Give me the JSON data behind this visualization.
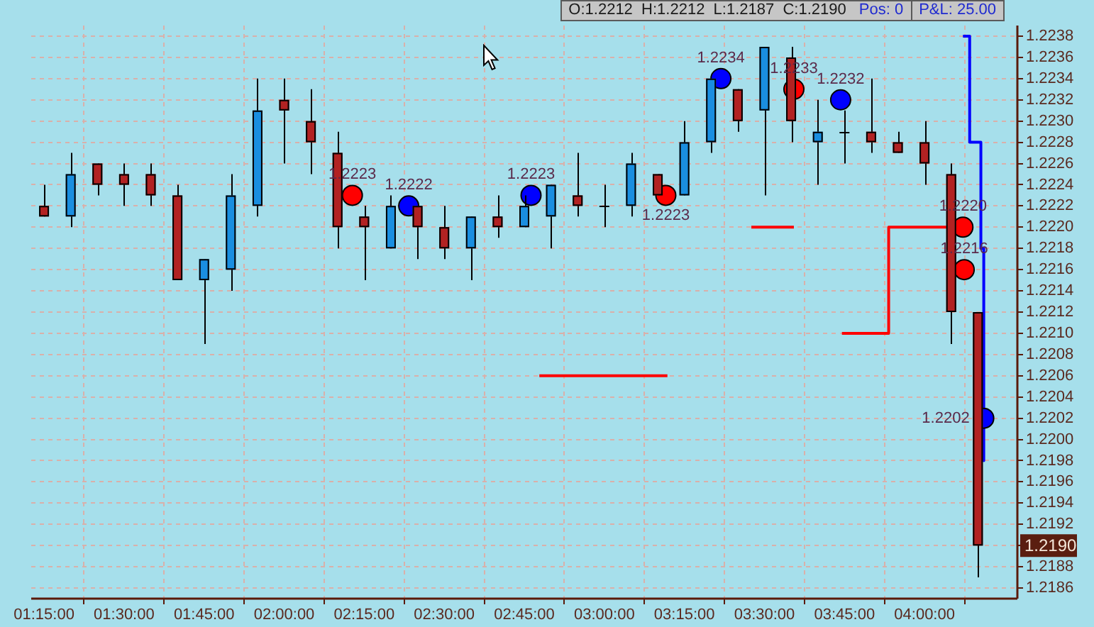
{
  "chart_data": {
    "type": "candlestick",
    "x": [
      1.25,
      1.3333,
      1.4167,
      1.5,
      1.5833,
      1.6667,
      1.75,
      1.8333,
      1.9167,
      2,
      2.0833,
      2.1667,
      2.25,
      2.3333,
      2.4167,
      2.5,
      2.5833,
      2.6667,
      2.75,
      2.8333,
      2.9167,
      3,
      3.0833,
      3.1667,
      3.25,
      3.3333,
      3.4167,
      3.5,
      3.5833,
      3.6667,
      3.75,
      3.8333,
      3.9167,
      4,
      4.0833,
      4.1667
    ],
    "ohlc": [
      [
        1.2222,
        1.2224,
        1.2221,
        1.2221
      ],
      [
        1.2221,
        1.2227,
        1.222,
        1.2225
      ],
      [
        1.2226,
        1.2226,
        1.2223,
        1.2224
      ],
      [
        1.2225,
        1.2226,
        1.2222,
        1.2224
      ],
      [
        1.2225,
        1.2226,
        1.2222,
        1.2223
      ],
      [
        1.2223,
        1.2224,
        1.2215,
        1.2215
      ],
      [
        1.2215,
        1.2217,
        1.2209,
        1.2217
      ],
      [
        1.2216,
        1.2225,
        1.2214,
        1.2223
      ],
      [
        1.2222,
        1.2234,
        1.2221,
        1.2231
      ],
      [
        1.2232,
        1.2234,
        1.2226,
        1.2231
      ],
      [
        1.223,
        1.2233,
        1.2225,
        1.2228
      ],
      [
        1.2227,
        1.2229,
        1.2218,
        1.222
      ],
      [
        1.2221,
        1.2222,
        1.2215,
        1.222
      ],
      [
        1.2218,
        1.2223,
        1.2218,
        1.2222
      ],
      [
        1.2222,
        1.2222,
        1.2217,
        1.222
      ],
      [
        1.222,
        1.2222,
        1.2217,
        1.2218
      ],
      [
        1.2218,
        1.2221,
        1.2215,
        1.2221
      ],
      [
        1.2221,
        1.2223,
        1.2219,
        1.222
      ],
      [
        1.222,
        1.2223,
        1.222,
        1.2222
      ],
      [
        1.2221,
        1.2224,
        1.2218,
        1.2224
      ],
      [
        1.2223,
        1.2227,
        1.2221,
        1.2222
      ],
      [
        1.2222,
        1.2224,
        1.222,
        1.2222
      ],
      [
        1.2222,
        1.2227,
        1.2221,
        1.2226
      ],
      [
        1.2225,
        1.2225,
        1.2223,
        1.2223
      ],
      [
        1.2223,
        1.223,
        1.2223,
        1.2228
      ],
      [
        1.2228,
        1.2234,
        1.2227,
        1.2234
      ],
      [
        1.2233,
        1.2233,
        1.2229,
        1.223
      ],
      [
        1.2231,
        1.2237,
        1.2223,
        1.2237
      ],
      [
        1.2236,
        1.2237,
        1.2228,
        1.223
      ],
      [
        1.2228,
        1.2232,
        1.2224,
        1.2229
      ],
      [
        1.2229,
        1.2231,
        1.2226,
        1.2229
      ],
      [
        1.2229,
        1.2234,
        1.2227,
        1.2228
      ],
      [
        1.2228,
        1.2229,
        1.2227,
        1.2227
      ],
      [
        1.2228,
        1.223,
        1.2224,
        1.2226
      ],
      [
        1.2225,
        1.2226,
        1.2209,
        1.2212
      ],
      [
        1.2212,
        1.2212,
        1.2187,
        1.219
      ]
    ],
    "colors": [
      "#b22222",
      "#1a8ee0",
      "#b22222",
      "#b22222",
      "#b22222",
      "#b22222",
      "#1a8ee0",
      "#1a8ee0",
      "#1a8ee0",
      "#b22222",
      "#b22222",
      "#b22222",
      "#b22222",
      "#1a8ee0",
      "#b22222",
      "#b22222",
      "#1a8ee0",
      "#b22222",
      "#1a8ee0",
      "#1a8ee0",
      "#b22222",
      "#000000",
      "#1a8ee0",
      "#b22222",
      "#1a8ee0",
      "#1a8ee0",
      "#b22222",
      "#1a8ee0",
      "#b22222",
      "#1a8ee0",
      "#000000",
      "#b22222",
      "#b22222",
      "#b22222",
      "#b22222",
      "#b22222"
    ],
    "series": [
      {
        "type": "scatter",
        "color": "#ff0000",
        "marker": "circle",
        "x": [
          2.213,
          3.192,
          3.592,
          4.12,
          4.124
        ],
        "values": [
          1.2223,
          1.2223,
          1.2233,
          1.222,
          1.2216
        ],
        "value_labels": [
          "1.2223",
          "1.2223",
          "1.2233",
          "1.2220",
          "1.2216"
        ]
      },
      {
        "type": "scatter",
        "color": "#0000ff",
        "marker": "circle",
        "x": [
          2.389,
          2.771,
          3.364,
          3.738,
          4.185
        ],
        "values": [
          1.2222,
          1.2223,
          1.2234,
          1.2232,
          1.2202
        ],
        "value_labels": [
          "1.2222",
          "1.2223",
          "1.2234",
          "1.2232",
          "1.2202"
        ]
      },
      {
        "type": "line",
        "color": "#ff0000",
        "marker": "none",
        "x": [
          2.797,
          3.197
        ],
        "values": [
          1.2206,
          1.2206
        ]
      },
      {
        "type": "line",
        "color": "#ff0000",
        "marker": "none",
        "x": [
          3.459,
          3.592
        ],
        "values": [
          1.222,
          1.222
        ]
      },
      {
        "type": "line",
        "color": "#ff0000",
        "marker": "none",
        "x": [
          3.742,
          3.888,
          3.888,
          4.103
        ],
        "values": [
          1.221,
          1.221,
          1.222,
          1.222
        ]
      },
      {
        "type": "line",
        "color": "#0000ff",
        "marker": "none",
        "x": [
          4.12,
          4.141,
          4.141,
          4.176,
          4.176,
          4.185,
          4.185
        ],
        "values": [
          1.2238,
          1.2238,
          1.2228,
          1.2228,
          1.2218,
          1.2218,
          1.2198
        ]
      }
    ],
    "xlim": [
      1.21,
      4.29
    ],
    "xticks": [
      {
        "value": 1.25,
        "label": "01:15:00"
      },
      {
        "value": 1.5,
        "label": "01:30:00"
      },
      {
        "value": 1.75,
        "label": "01:45:00"
      },
      {
        "value": 2,
        "label": "02:00:00"
      },
      {
        "value": 2.25,
        "label": "02:15:00"
      },
      {
        "value": 2.5,
        "label": "02:30:00"
      },
      {
        "value": 2.75,
        "label": "02:45:00"
      },
      {
        "value": 3,
        "label": "03:00:00"
      },
      {
        "value": 3.25,
        "label": "03:15:00"
      },
      {
        "value": 3.5,
        "label": "03:30:00"
      },
      {
        "value": 3.75,
        "label": "03:45:00"
      },
      {
        "value": 4,
        "label": "04:00:00"
      }
    ],
    "ylim": [
      1.2185,
      1.2239
    ],
    "yticks": [
      1.2186,
      1.2188,
      {
        "value": 1.219,
        "label": null
      },
      1.2192,
      1.2194,
      1.2196,
      1.2198,
      {
        "value": 1.22,
        "label": "1.2200"
      },
      1.2202,
      1.2204,
      1.2206,
      1.2208,
      {
        "value": 1.221,
        "label": "1.2210"
      },
      1.2212,
      1.2214,
      1.2216,
      1.2218,
      {
        "value": 1.222,
        "label": "1.2220"
      },
      1.2222,
      1.2224,
      1.2226,
      1.2228,
      {
        "value": 1.223,
        "label": "1.2230"
      },
      1.2232,
      1.2234,
      1.2236,
      1.2238
    ],
    "grid": true,
    "annotations": [
      "O:1.2212  H:1.2212  L:1.2187  C:1.2190",
      "Pos: 0",
      "P&L: 25.00",
      {
        "text": "1.2190",
        "y": 1.219
      }
    ]
  }
}
